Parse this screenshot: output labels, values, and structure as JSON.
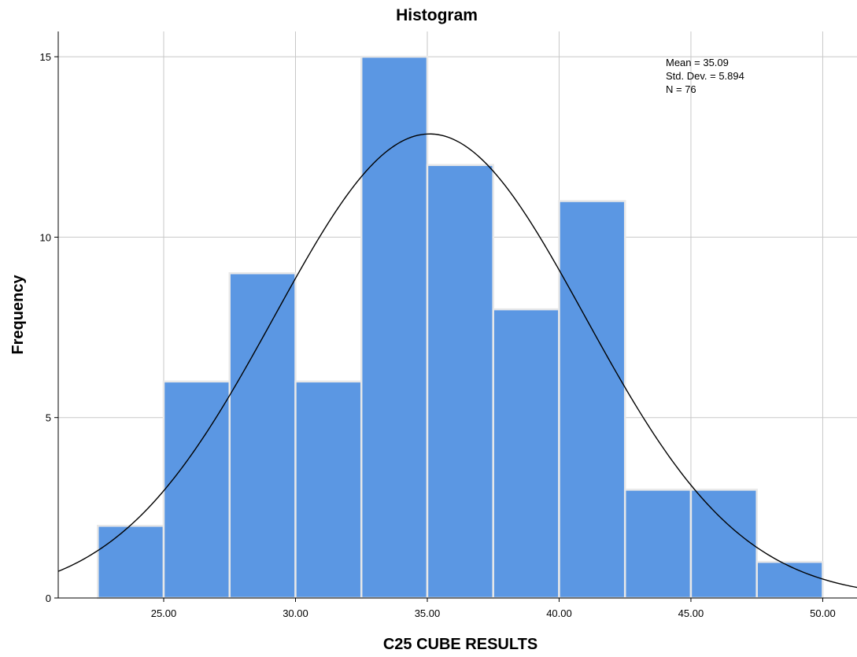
{
  "chart_data": {
    "type": "bar",
    "title": "Histogram",
    "xlabel": "C25 CUBE RESULTS",
    "ylabel": "Frequency",
    "bin_width": 2.5,
    "bin_starts": [
      22.5,
      25,
      27.5,
      30,
      32.5,
      35,
      37.5,
      40,
      42.5,
      45,
      47.5
    ],
    "values": [
      2,
      6,
      9,
      6,
      15,
      12,
      8,
      11,
      3,
      3,
      1
    ],
    "xlim": [
      21.0,
      51.3
    ],
    "ylim": [
      0,
      15.7
    ],
    "x_ticks": [
      "25.00",
      "30.00",
      "35.00",
      "40.00",
      "45.00",
      "50.00"
    ],
    "x_tick_values": [
      25,
      30,
      35,
      40,
      45,
      50
    ],
    "y_ticks": [
      "0",
      "5",
      "10",
      "15"
    ],
    "y_tick_values": [
      0,
      5,
      10,
      15
    ],
    "grid": true,
    "normal_curve": {
      "mean": 35.09,
      "std_dev": 5.894,
      "n": 76
    },
    "stats_lines": [
      "Mean = 35.09",
      "Std. Dev. = 5.894",
      "N = 76"
    ],
    "bar_color": "#5b97e3",
    "bar_edge_color": "#e8e8e8",
    "grid_color": "#c8c8c8",
    "curve_color": "#000000"
  }
}
